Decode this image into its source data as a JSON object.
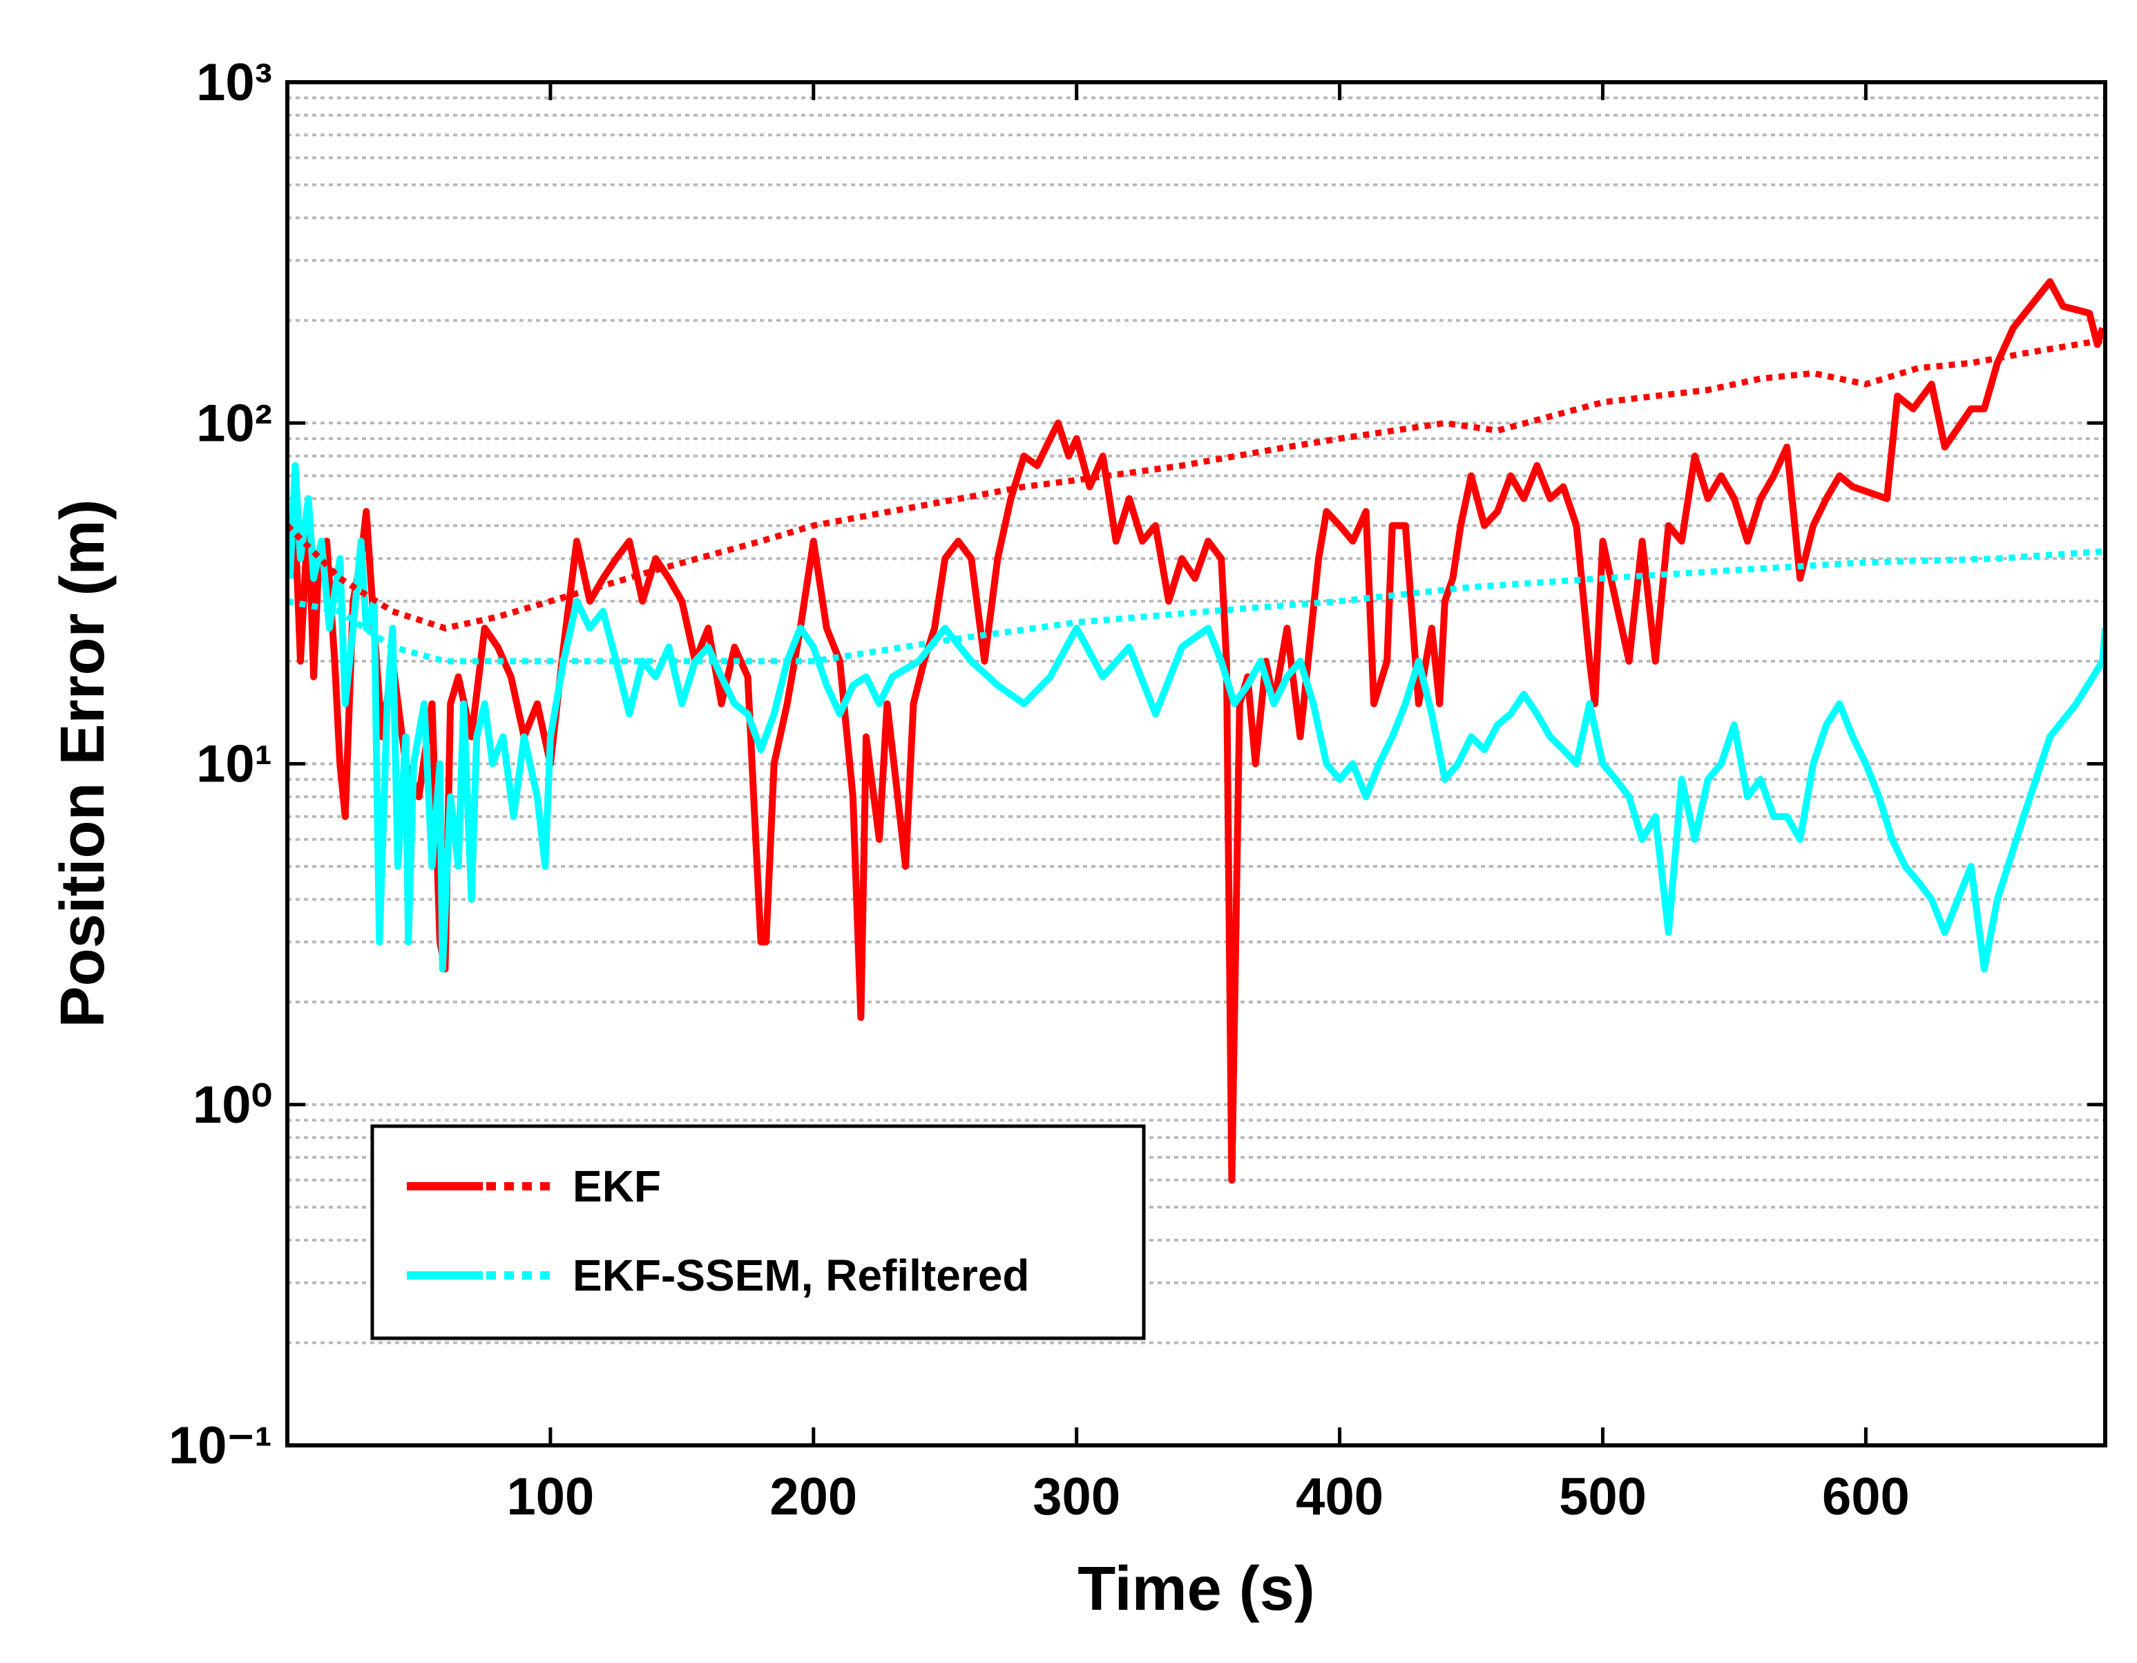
{
  "chart_data": {
    "type": "line",
    "xlabel": "Time (s)",
    "ylabel": "Position Error (m)",
    "xlim": [
      0,
      691
    ],
    "xticks": [
      100,
      200,
      300,
      400,
      500,
      600
    ],
    "ylim": [
      0.1,
      1000
    ],
    "yscale": "log",
    "yticks": [
      {
        "value": 0.1,
        "label": "10⁻¹"
      },
      {
        "value": 1,
        "label": "10⁰"
      },
      {
        "value": 10,
        "label": "10¹"
      },
      {
        "value": 100,
        "label": "10²"
      },
      {
        "value": 1000,
        "label": "10³"
      }
    ],
    "yminor": [
      0.2,
      0.3,
      0.4,
      0.5,
      0.6,
      0.7,
      0.8,
      0.9,
      2,
      3,
      4,
      5,
      6,
      7,
      8,
      9,
      20,
      30,
      40,
      50,
      60,
      70,
      80,
      90,
      200,
      300,
      400,
      500,
      600,
      700,
      800,
      900
    ],
    "grid": true,
    "legend": "lower left",
    "series": [
      {
        "name": "EKF",
        "color": "#ff0000",
        "x": [
          1,
          3,
          5,
          8,
          10,
          12,
          15,
          18,
          20,
          22,
          25,
          28,
          30,
          33,
          36,
          40,
          45,
          50,
          55,
          58,
          60,
          62,
          65,
          70,
          75,
          80,
          85,
          90,
          95,
          100,
          105,
          110,
          115,
          120,
          125,
          130,
          135,
          140,
          145,
          150,
          155,
          160,
          165,
          170,
          175,
          180,
          182,
          185,
          190,
          195,
          200,
          205,
          210,
          215,
          218,
          220,
          225,
          228,
          232,
          235,
          238,
          242,
          246,
          250,
          255,
          260,
          265,
          270,
          275,
          280,
          285,
          290,
          293,
          297,
          300,
          305,
          310,
          315,
          320,
          325,
          330,
          335,
          340,
          345,
          350,
          355,
          357,
          359,
          362,
          365,
          368,
          372,
          375,
          380,
          385,
          388,
          392,
          395,
          400,
          405,
          410,
          413,
          418,
          420,
          425,
          430,
          435,
          438,
          440,
          443,
          446,
          450,
          455,
          460,
          465,
          470,
          475,
          480,
          485,
          490,
          495,
          497,
          500,
          505,
          510,
          515,
          520,
          525,
          530,
          535,
          540,
          545,
          550,
          555,
          560,
          565,
          570,
          575,
          580,
          585,
          590,
          595,
          608,
          612,
          618,
          625,
          630,
          640,
          645,
          650,
          656,
          670,
          675,
          685,
          688,
          690
        ],
        "values": [
          35,
          50,
          20,
          55,
          18,
          40,
          45,
          20,
          10,
          7,
          30,
          40,
          55,
          25,
          12,
          20,
          10,
          8,
          15,
          3,
          2.5,
          15,
          18,
          12,
          25,
          22,
          18,
          12,
          15,
          10,
          22,
          45,
          30,
          35,
          40,
          45,
          30,
          40,
          35,
          30,
          20,
          25,
          15,
          22,
          18,
          3,
          3,
          10,
          15,
          25,
          45,
          25,
          20,
          8,
          1.8,
          12,
          6,
          15,
          8,
          5,
          15,
          20,
          25,
          40,
          45,
          40,
          20,
          40,
          60,
          80,
          75,
          90,
          100,
          80,
          90,
          65,
          80,
          45,
          60,
          45,
          50,
          30,
          40,
          35,
          45,
          40,
          20,
          0.6,
          15,
          18,
          10,
          20,
          15,
          25,
          12,
          20,
          40,
          55,
          50,
          45,
          55,
          15,
          20,
          50,
          50,
          15,
          25,
          15,
          30,
          35,
          50,
          70,
          50,
          55,
          70,
          60,
          75,
          60,
          65,
          50,
          20,
          15,
          45,
          30,
          20,
          45,
          20,
          50,
          45,
          80,
          60,
          70,
          60,
          45,
          60,
          70,
          85,
          35,
          50,
          60,
          70,
          65,
          60,
          120,
          110,
          130,
          85,
          110,
          110,
          150,
          190,
          260,
          220,
          210,
          170,
          190
        ],
        "dotted": {
          "x": [
            0,
            20,
            40,
            60,
            80,
            100,
            140,
            180,
            200,
            240,
            280,
            300,
            340,
            380,
            400,
            440,
            460,
            500,
            520,
            540,
            560,
            580,
            600,
            620,
            640,
            660,
            690
          ],
          "values": [
            50,
            35,
            28,
            25,
            27,
            30,
            37,
            45,
            50,
            57,
            65,
            68,
            75,
            85,
            90,
            100,
            95,
            115,
            120,
            125,
            135,
            140,
            130,
            145,
            150,
            160,
            175
          ]
        }
      },
      {
        "name": "EKF-SSEM, Refiltered",
        "color": "#00ffff",
        "x": [
          1,
          3,
          5,
          8,
          10,
          13,
          16,
          20,
          22,
          25,
          28,
          30,
          33,
          35,
          38,
          40,
          42,
          45,
          46,
          48,
          52,
          55,
          58,
          59,
          62,
          65,
          67,
          70,
          72,
          75,
          78,
          82,
          86,
          90,
          95,
          98,
          100,
          105,
          110,
          115,
          120,
          125,
          130,
          135,
          140,
          145,
          150,
          155,
          160,
          165,
          170,
          175,
          180,
          185,
          190,
          195,
          200,
          205,
          210,
          215,
          220,
          225,
          230,
          240,
          250,
          260,
          270,
          280,
          290,
          300,
          310,
          320,
          330,
          340,
          350,
          355,
          360,
          365,
          370,
          375,
          380,
          385,
          390,
          395,
          400,
          405,
          410,
          415,
          420,
          425,
          430,
          435,
          440,
          445,
          450,
          455,
          460,
          465,
          470,
          475,
          480,
          485,
          490,
          495,
          500,
          505,
          510,
          515,
          520,
          525,
          530,
          535,
          540,
          545,
          550,
          555,
          560,
          565,
          570,
          575,
          580,
          585,
          590,
          595,
          600,
          605,
          610,
          615,
          620,
          625,
          630,
          635,
          640,
          645,
          650,
          660,
          670,
          680,
          690,
          691
        ],
        "values": [
          35,
          75,
          40,
          60,
          35,
          45,
          25,
          40,
          15,
          25,
          45,
          25,
          30,
          3,
          15,
          25,
          5,
          12,
          3,
          10,
          15,
          5,
          10,
          2.5,
          8,
          5,
          15,
          4,
          12,
          15,
          10,
          12,
          7,
          12,
          8,
          5,
          12,
          20,
          30,
          25,
          28,
          20,
          14,
          20,
          18,
          22,
          15,
          20,
          22,
          18,
          15,
          14,
          11,
          14,
          20,
          25,
          22,
          17,
          14,
          17,
          18,
          15,
          18,
          20,
          25,
          20,
          17,
          15,
          18,
          25,
          18,
          22,
          14,
          22,
          25,
          20,
          15,
          17,
          20,
          15,
          18,
          20,
          15,
          10,
          9,
          10,
          8,
          10,
          12,
          15,
          20,
          14,
          9,
          10,
          12,
          11,
          13,
          14,
          16,
          14,
          12,
          11,
          10,
          15,
          10,
          9,
          8,
          6,
          7,
          3.2,
          9,
          6,
          9,
          10,
          13,
          8,
          9,
          7,
          7,
          6,
          10,
          13,
          15,
          12,
          10,
          8,
          6,
          5,
          4.5,
          4,
          3.2,
          4,
          5,
          2.5,
          4,
          7,
          12,
          15,
          20,
          25
        ],
        "dotted": {
          "x": [
            0,
            20,
            40,
            60,
            80,
            100,
            150,
            200,
            250,
            300,
            350,
            400,
            450,
            500,
            550,
            600,
            650,
            690
          ],
          "values": [
            30,
            28,
            22,
            20,
            20,
            20,
            20,
            20,
            23,
            26,
            28,
            30,
            33,
            35,
            37,
            39,
            40,
            42
          ]
        }
      }
    ]
  }
}
